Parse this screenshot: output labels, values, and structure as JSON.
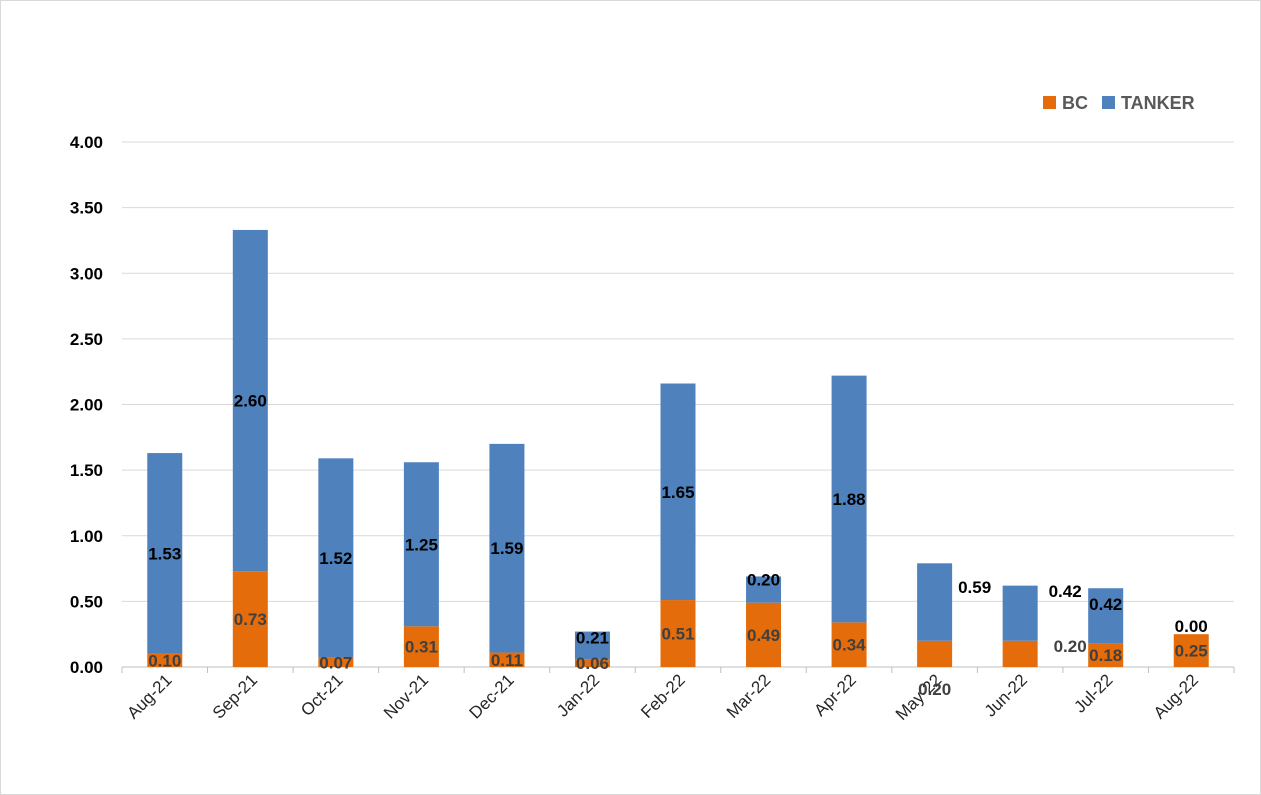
{
  "chart_data": {
    "type": "bar",
    "stacked": true,
    "categories": [
      "Aug-21",
      "Sep-21",
      "Oct-21",
      "Nov-21",
      "Dec-21",
      "Jan-22",
      "Feb-22",
      "Mar-22",
      "Apr-22",
      "May-22",
      "Jun-22",
      "Jul-22",
      "Aug-22"
    ],
    "series": [
      {
        "name": "BC",
        "color": "#e46c0a",
        "values": [
          0.1,
          0.73,
          0.07,
          0.31,
          0.11,
          0.06,
          0.51,
          0.49,
          0.34,
          0.2,
          0.2,
          0.18,
          0.25
        ],
        "labels": [
          "0.10",
          "0.73",
          "0.07",
          "0.31",
          "0.11",
          "0.06",
          "0.51",
          "0.49",
          "0.34",
          "0.20",
          "0.20",
          "0.18",
          "0.25"
        ]
      },
      {
        "name": "TANKER",
        "color": "#4f81bd",
        "values": [
          1.53,
          2.6,
          1.52,
          1.25,
          1.59,
          0.21,
          1.65,
          0.2,
          1.88,
          0.59,
          0.42,
          0.42,
          0.0
        ],
        "labels": [
          "1.53",
          "2.60",
          "1.52",
          "1.25",
          "1.59",
          "0.21",
          "1.65",
          "0.20",
          "1.88",
          "0.59",
          "0.42",
          "0.42",
          "0.00"
        ]
      }
    ],
    "y_ticks": [
      "0.00",
      "0.50",
      "1.00",
      "1.50",
      "2.00",
      "2.50",
      "3.00",
      "3.50",
      "4.00"
    ],
    "ylim": [
      0,
      4
    ],
    "grid": true,
    "legend_position": "top-right"
  }
}
